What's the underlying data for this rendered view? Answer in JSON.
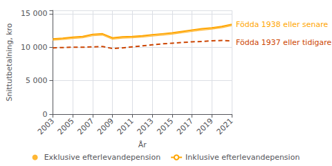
{
  "chart_data": {
    "type": "line",
    "xlabel": "År",
    "ylabel": "Snittutbetalning, kro",
    "x": [
      2003,
      2004,
      2005,
      2006,
      2007,
      2008,
      2009,
      2010,
      2011,
      2012,
      2013,
      2014,
      2015,
      2016,
      2017,
      2018,
      2019,
      2020,
      2021
    ],
    "xlim": [
      2003,
      2021
    ],
    "xticks": [
      2003,
      2005,
      2007,
      2009,
      2011,
      2013,
      2015,
      2017,
      2019,
      2021
    ],
    "ylim": [
      0,
      15500
    ],
    "yticks": [
      0,
      {
        "value": 5000,
        "label": "5 000"
      },
      {
        "value": 10000,
        "label": "10 000"
      },
      {
        "value": 15000,
        "label": "15 000"
      }
    ],
    "grid": true,
    "legend": "bottom",
    "series": [
      {
        "name": "Exklusive efterlevandepension",
        "color": "#FFB733",
        "line_style": "solid",
        "values": [
          11050,
          11150,
          11300,
          11400,
          11700,
          11800,
          11200,
          11350,
          11400,
          11500,
          11650,
          11800,
          11950,
          12150,
          12350,
          12550,
          12700,
          12900,
          13200
        ]
      },
      {
        "name": "Inklusive efterlevandepension",
        "color": "#FFA500",
        "line_style": "solid",
        "values": [
          11250,
          11350,
          11500,
          11600,
          11900,
          12000,
          11400,
          11550,
          11600,
          11700,
          11850,
          12000,
          12150,
          12350,
          12550,
          12750,
          12900,
          13100,
          13400
        ]
      },
      {
        "color": "#CC4400",
        "line_style": "dashed",
        "values": [
          9900,
          9950,
          10000,
          10000,
          10050,
          10100,
          9800,
          9900,
          10050,
          10200,
          10350,
          10500,
          10600,
          10700,
          10800,
          10850,
          10950,
          11000,
          10950
        ]
      }
    ],
    "annotations": [
      {
        "text": "Födda 1938 eller senare",
        "color": "#FFA500"
      },
      {
        "text": "Födda 1937 eller tidigare",
        "color": "#CC4400"
      }
    ]
  }
}
